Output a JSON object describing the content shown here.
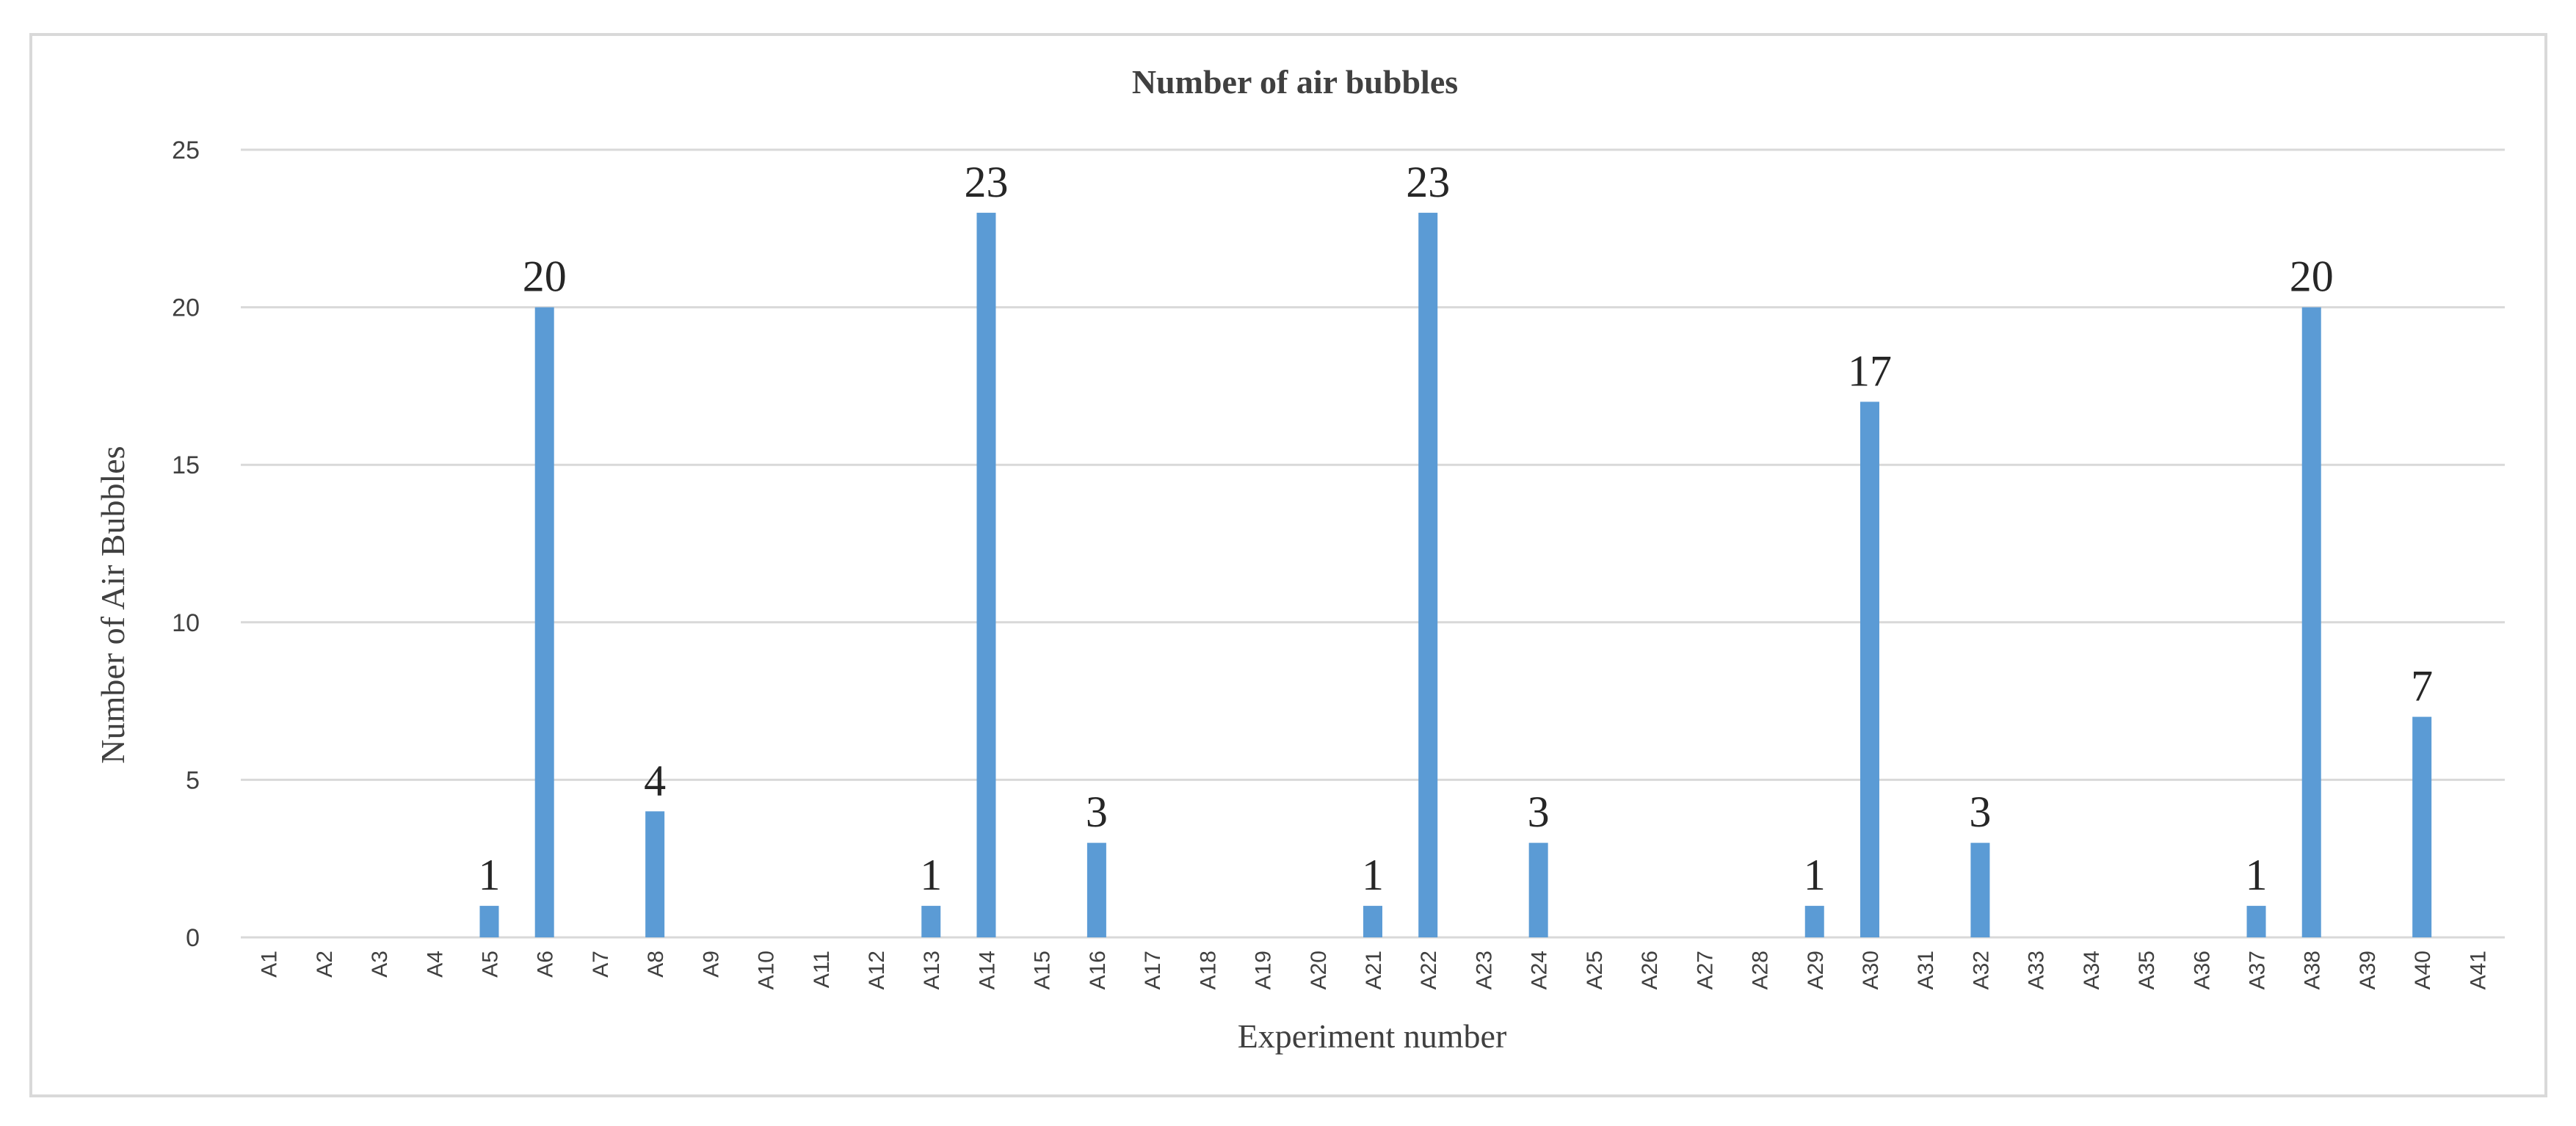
{
  "chart_data": {
    "type": "bar",
    "title": "Number of air bubbles",
    "xlabel": "Experiment number",
    "ylabel": "Number of Air Bubbles",
    "ylim": [
      0,
      25
    ],
    "yticks": [
      0,
      5,
      10,
      15,
      20,
      25
    ],
    "grid": true,
    "legend": "none",
    "bar_color": "#5b9bd5",
    "categories": [
      "A1",
      "A2",
      "A3",
      "A4",
      "A5",
      "A6",
      "A7",
      "A8",
      "A9",
      "A10",
      "A11",
      "A12",
      "A13",
      "A14",
      "A15",
      "A16",
      "A17",
      "A18",
      "A19",
      "A20",
      "A21",
      "A22",
      "A23",
      "A24",
      "A25",
      "A26",
      "A27",
      "A28",
      "A29",
      "A30",
      "A31",
      "A32",
      "A33",
      "A34",
      "A35",
      "A36",
      "A37",
      "A38",
      "A39",
      "A40",
      "A41"
    ],
    "values": [
      0,
      0,
      0,
      0,
      1,
      20,
      0,
      4,
      0,
      0,
      0,
      0,
      1,
      23,
      0,
      3,
      0,
      0,
      0,
      0,
      1,
      23,
      0,
      3,
      0,
      0,
      0,
      0,
      1,
      17,
      0,
      3,
      0,
      0,
      0,
      0,
      1,
      20,
      0,
      7,
      0
    ],
    "data_labels": [
      "",
      "",
      "",
      "",
      "1",
      "20",
      "",
      "4",
      "",
      "",
      "",
      "",
      "1",
      "23",
      "",
      "3",
      "",
      "",
      "",
      "",
      "1",
      "23",
      "",
      "3",
      "",
      "",
      "",
      "",
      "1",
      "17",
      "",
      "3",
      "",
      "",
      "",
      "",
      "1",
      "20",
      "",
      "7",
      ""
    ]
  }
}
